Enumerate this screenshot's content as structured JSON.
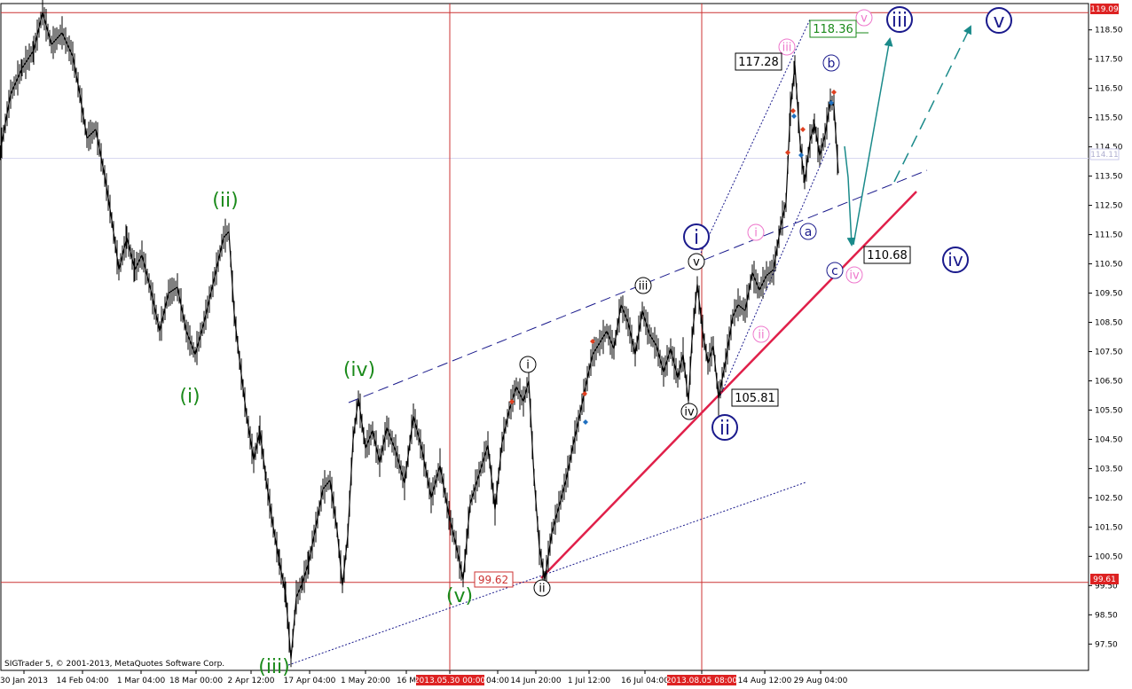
{
  "copyright": "SIGTrader 5, © 2001-2013, MetaQuotes Software Corp.",
  "price_marks": {
    "top": "119.09",
    "current": "114.11",
    "low": "99.61"
  },
  "chart_data": {
    "type": "line",
    "ylim": [
      96.6,
      119.4
    ],
    "yticks": [
      "118.50",
      "117.50",
      "116.50",
      "115.50",
      "114.50",
      "113.50",
      "112.50",
      "111.50",
      "110.50",
      "109.50",
      "108.50",
      "107.50",
      "106.50",
      "105.50",
      "104.50",
      "103.50",
      "102.50",
      "101.50",
      "100.50",
      "99.50",
      "98.50",
      "97.50"
    ],
    "xticks": [
      "30 Jan 2013",
      "14 Feb 04:00",
      "1 Mar 04:00",
      "18 Mar 00:00",
      "2 Apr 12:00",
      "17 Apr 04:00",
      "1 May 20:00",
      "16 M",
      "2013.05.30 00:00",
      "04:00",
      "14 Jun 20:00",
      "1 Jul 12:00",
      "16 Jul 04:00",
      "2013.08.05 08:00",
      "14 Aug 12:00",
      "29 Aug 04:00"
    ],
    "hlines": [
      119.09,
      99.61,
      114.11
    ],
    "vlines": [
      "2013.05.30 00:00",
      "2013.08.05 08:00"
    ],
    "price_labels": [
      "118.36",
      "117.28",
      "110.68",
      "105.81",
      "99.62"
    ],
    "wave_labels_green": [
      "(i)",
      "(ii)",
      "(iii)",
      "(iv)",
      "(v)"
    ],
    "wave_labels_black": [
      "i",
      "ii",
      "iii",
      "iv",
      "v"
    ],
    "wave_labels_navy": [
      "i",
      "ii",
      "iii",
      "iv",
      "v",
      "a",
      "b",
      "c"
    ],
    "wave_labels_pink": [
      "i",
      "ii",
      "iii",
      "iv",
      "v"
    ],
    "colors": {
      "price": "#000000",
      "hline": "#cc3333",
      "label_green": "#1a8a1a",
      "label_navy": "#1a1a8c",
      "label_pink": "#ee77cc",
      "trendline": "#e0204a",
      "arrow": "#1a8a8a",
      "dashed": "#1a1a8c"
    },
    "series": [
      {
        "values": [
          [
            0,
            114.3
          ],
          [
            12,
            116.3
          ],
          [
            25,
            117.2
          ],
          [
            38,
            117.8
          ],
          [
            48,
            119.1
          ],
          [
            58,
            118.0
          ],
          [
            70,
            118.4
          ],
          [
            82,
            117.6
          ],
          [
            90,
            116.3
          ],
          [
            98,
            114.8
          ],
          [
            108,
            115.1
          ],
          [
            118,
            113.5
          ],
          [
            126,
            112.0
          ],
          [
            134,
            110.3
          ],
          [
            143,
            111.4
          ],
          [
            152,
            110.3
          ],
          [
            160,
            110.8
          ],
          [
            170,
            109.6
          ],
          [
            180,
            108.2
          ],
          [
            190,
            109.5
          ],
          [
            200,
            109.7
          ],
          [
            210,
            108.2
          ],
          [
            220,
            107.4
          ],
          [
            230,
            108.5
          ],
          [
            240,
            109.8
          ],
          [
            252,
            111.4
          ],
          [
            258,
            111.6
          ],
          [
            264,
            108.8
          ],
          [
            270,
            107.2
          ],
          [
            278,
            105.3
          ],
          [
            286,
            103.8
          ],
          [
            293,
            104.8
          ],
          [
            300,
            103.1
          ],
          [
            308,
            101.5
          ],
          [
            315,
            100.3
          ],
          [
            322,
            99.2
          ],
          [
            328,
            97.0
          ],
          [
            334,
            99.1
          ],
          [
            341,
            99.6
          ],
          [
            348,
            100.3
          ],
          [
            356,
            101.5
          ],
          [
            364,
            102.8
          ],
          [
            372,
            103.1
          ],
          [
            380,
            101.4
          ],
          [
            386,
            99.5
          ],
          [
            392,
            101.2
          ],
          [
            398,
            104.5
          ],
          [
            404,
            105.9
          ],
          [
            412,
            104.2
          ],
          [
            420,
            104.8
          ],
          [
            428,
            103.7
          ],
          [
            436,
            104.9
          ],
          [
            446,
            104.1
          ],
          [
            456,
            103.0
          ],
          [
            466,
            105.3
          ],
          [
            476,
            104.1
          ],
          [
            486,
            102.5
          ],
          [
            496,
            103.6
          ],
          [
            506,
            101.9
          ],
          [
            514,
            100.9
          ],
          [
            522,
            99.7
          ],
          [
            530,
            102.3
          ],
          [
            540,
            103.3
          ],
          [
            550,
            104.3
          ],
          [
            558,
            102.1
          ],
          [
            566,
            104.4
          ],
          [
            574,
            105.5
          ],
          [
            582,
            106.3
          ],
          [
            590,
            105.8
          ],
          [
            596,
            106.5
          ],
          [
            602,
            103.2
          ],
          [
            608,
            100.8
          ],
          [
            614,
            99.7
          ],
          [
            622,
            101.3
          ],
          [
            630,
            102.2
          ],
          [
            638,
            103.1
          ],
          [
            646,
            104.3
          ],
          [
            654,
            105.4
          ],
          [
            660,
            106.3
          ],
          [
            668,
            107.4
          ],
          [
            676,
            107.8
          ],
          [
            684,
            108.2
          ],
          [
            692,
            107.6
          ],
          [
            700,
            109.1
          ],
          [
            708,
            108.5
          ],
          [
            716,
            107.4
          ],
          [
            724,
            108.9
          ],
          [
            732,
            108.1
          ],
          [
            740,
            107.7
          ],
          [
            748,
            106.8
          ],
          [
            756,
            107.6
          ],
          [
            764,
            106.6
          ],
          [
            770,
            107.4
          ],
          [
            776,
            105.8
          ],
          [
            780,
            107.9
          ],
          [
            786,
            109.8
          ],
          [
            792,
            108.2
          ],
          [
            798,
            107.1
          ],
          [
            804,
            107.7
          ],
          [
            810,
            105.9
          ],
          [
            818,
            107.2
          ],
          [
            826,
            108.7
          ],
          [
            832,
            109.1
          ],
          [
            840,
            108.9
          ],
          [
            848,
            110.2
          ],
          [
            856,
            109.6
          ],
          [
            864,
            110.1
          ],
          [
            872,
            110.3
          ],
          [
            880,
            111.8
          ],
          [
            886,
            112.6
          ],
          [
            891,
            115.8
          ],
          [
            896,
            117.3
          ],
          [
            902,
            114.6
          ],
          [
            907,
            113.3
          ],
          [
            913,
            114.7
          ],
          [
            918,
            115.3
          ],
          [
            924,
            114.2
          ],
          [
            930,
            114.9
          ],
          [
            936,
            116.1
          ],
          [
            940,
            115.9
          ],
          [
            945,
            113.6
          ]
        ]
      }
    ]
  }
}
